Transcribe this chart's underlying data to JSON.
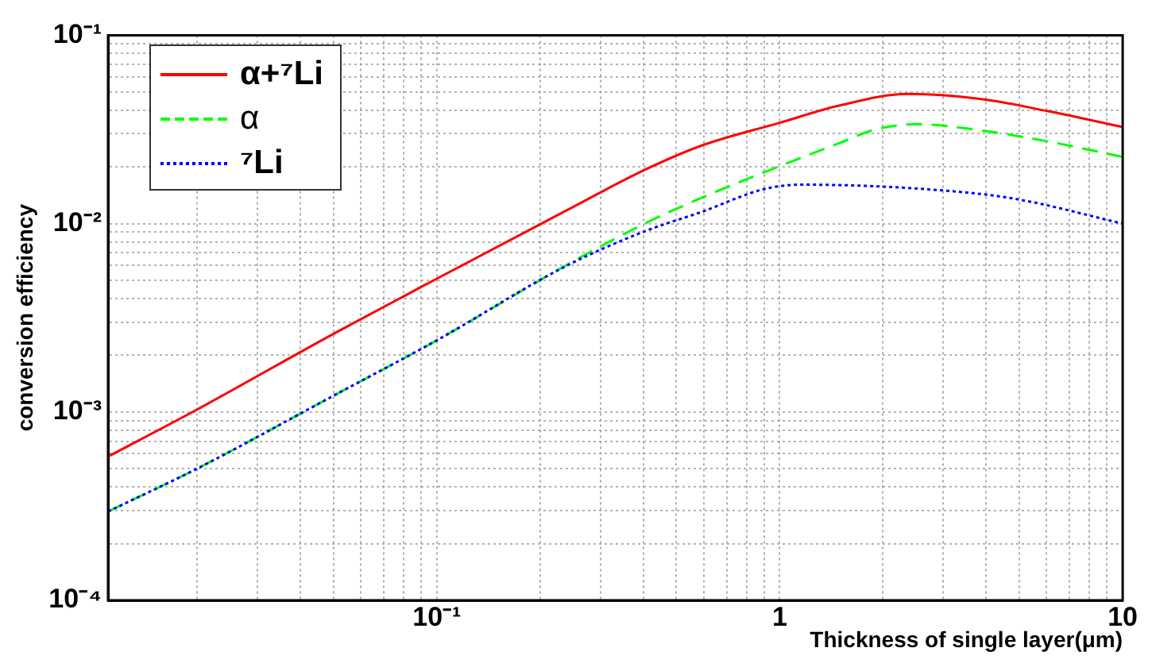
{
  "chart_data": {
    "type": "line",
    "xlabel": "Thickness of single layer(μm)",
    "ylabel": "conversion efficiency",
    "log": "xy",
    "grid": true,
    "legend": "top left",
    "xlim": [
      0.011,
      10
    ],
    "ylim": [
      0.0001,
      0.1
    ],
    "xticks": [
      {
        "value": 0.02,
        "label": null
      },
      {
        "value": 0.03,
        "label": null
      },
      {
        "value": 0.04,
        "label": null
      },
      {
        "value": 0.05,
        "label": null
      },
      {
        "value": 0.06,
        "label": null
      },
      {
        "value": 0.07,
        "label": null
      },
      {
        "value": 0.08,
        "label": null
      },
      {
        "value": 0.09,
        "label": null
      },
      {
        "value": 0.1,
        "label": "10⁻¹"
      },
      {
        "value": 0.2,
        "label": null
      },
      {
        "value": 0.3,
        "label": null
      },
      {
        "value": 0.4,
        "label": null
      },
      {
        "value": 0.5,
        "label": null
      },
      {
        "value": 0.6,
        "label": null
      },
      {
        "value": 0.7,
        "label": null
      },
      {
        "value": 0.8,
        "label": null
      },
      {
        "value": 0.9,
        "label": null
      },
      1,
      {
        "value": 2,
        "label": null
      },
      {
        "value": 3,
        "label": null
      },
      {
        "value": 4,
        "label": null
      },
      {
        "value": 5,
        "label": null
      },
      {
        "value": 6,
        "label": null
      },
      {
        "value": 7,
        "label": null
      },
      {
        "value": 8,
        "label": null
      },
      {
        "value": 9,
        "label": null
      },
      10
    ],
    "yticks": [
      {
        "value": 0.0001,
        "label": "10⁻⁴"
      },
      {
        "value": 0.0002,
        "label": null
      },
      {
        "value": 0.0003,
        "label": null
      },
      {
        "value": 0.0004,
        "label": null
      },
      {
        "value": 0.0005,
        "label": null
      },
      {
        "value": 0.0006,
        "label": null
      },
      {
        "value": 0.0007,
        "label": null
      },
      {
        "value": 0.0008,
        "label": null
      },
      {
        "value": 0.0009,
        "label": null
      },
      {
        "value": 0.001,
        "label": "10⁻³"
      },
      {
        "value": 0.002,
        "label": null
      },
      {
        "value": 0.003,
        "label": null
      },
      {
        "value": 0.004,
        "label": null
      },
      {
        "value": 0.005,
        "label": null
      },
      {
        "value": 0.006,
        "label": null
      },
      {
        "value": 0.007,
        "label": null
      },
      {
        "value": 0.008,
        "label": null
      },
      {
        "value": 0.009,
        "label": null
      },
      {
        "value": 0.01,
        "label": "10⁻²"
      },
      {
        "value": 0.02,
        "label": null
      },
      {
        "value": 0.03,
        "label": null
      },
      {
        "value": 0.04,
        "label": null
      },
      {
        "value": 0.05,
        "label": null
      },
      {
        "value": 0.06,
        "label": null
      },
      {
        "value": 0.07,
        "label": null
      },
      {
        "value": 0.08,
        "label": null
      },
      {
        "value": 0.09,
        "label": null
      },
      {
        "value": 0.1,
        "label": "10⁻¹"
      }
    ],
    "series": [
      {
        "name": "α+⁷Li",
        "color": "#ff0000",
        "line_style": "solid",
        "x": [
          0.011,
          0.02,
          0.05,
          0.1,
          0.238,
          0.404,
          0.597,
          1,
          1.48,
          2.37,
          3.98,
          6.06,
          10
        ],
        "values": [
          0.00058,
          0.00103,
          0.0026,
          0.0051,
          0.0117,
          0.0193,
          0.0261,
          0.0343,
          0.0422,
          0.0488,
          0.0455,
          0.0395,
          0.0326
        ]
      },
      {
        "name": "α",
        "color": "#00ff00",
        "line_style": "dashed",
        "x": [
          0.011,
          0.02,
          0.05,
          0.1,
          0.238,
          0.404,
          0.597,
          1,
          1.48,
          1.9,
          2.5,
          3.98,
          6.06,
          10
        ],
        "values": [
          0.000296,
          0.0005,
          0.00122,
          0.0024,
          0.006,
          0.01,
          0.0138,
          0.0202,
          0.0266,
          0.0316,
          0.0337,
          0.031,
          0.0273,
          0.0226
        ]
      },
      {
        "name": "⁷Li",
        "color": "#0000ff",
        "line_style": "dotted",
        "x": [
          0.011,
          0.02,
          0.05,
          0.1,
          0.238,
          0.404,
          0.597,
          0.906,
          1.16,
          2.99,
          4.9,
          10
        ],
        "values": [
          0.000296,
          0.0005,
          0.00122,
          0.0024,
          0.00595,
          0.0091,
          0.0116,
          0.0153,
          0.0161,
          0.015,
          0.0135,
          0.01
        ]
      }
    ]
  }
}
